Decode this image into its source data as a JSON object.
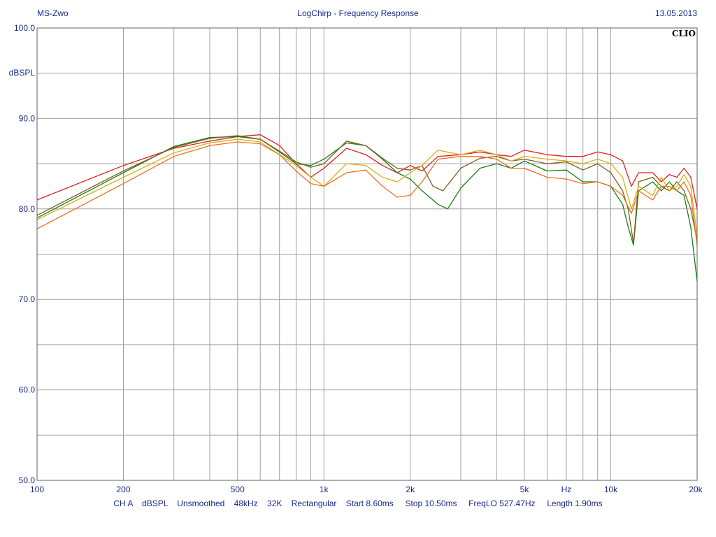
{
  "header": {
    "left": "MS-Zwo",
    "center": "LogChirp - Frequency Response",
    "right": "13.05.2013"
  },
  "brand": "CLIO",
  "footer": "CH A    dBSPL    Unsmoothed    48kHz    32K    Rectangular    Start 8.60ms     Stop 10.50ms     FreqLO 527.47Hz     Length 1.90ms",
  "colors": {
    "background": "#ffffff",
    "grid": "#a0a0a0",
    "text": "#1a2a8a",
    "frame": "#606060"
  },
  "chart_data": {
    "type": "line",
    "xscale": "log",
    "xlim": [
      100,
      20000
    ],
    "ylim": [
      50,
      100
    ],
    "grid": true,
    "ylabel": "dBSPL",
    "xlabel": "Hz",
    "y_ticks": [
      "100.0",
      "90.0",
      "80.0",
      "70.0",
      "60.0",
      "50.0"
    ],
    "y_tick_values": [
      100,
      90,
      80,
      70,
      60,
      50
    ],
    "x_ticks": [
      {
        "value": 100,
        "label": "100"
      },
      {
        "value": 200,
        "label": "200"
      },
      {
        "value": 500,
        "label": "500"
      },
      {
        "value": 1000,
        "label": "1k"
      },
      {
        "value": 2000,
        "label": "2k"
      },
      {
        "value": 5000,
        "label": "5k"
      },
      {
        "value": 10000,
        "label": "10k"
      },
      {
        "value": 20000,
        "label": "20k"
      }
    ],
    "series": [
      {
        "color": "#e02020",
        "points": [
          [
            100,
            81.0
          ],
          [
            200,
            84.8
          ],
          [
            300,
            86.7
          ],
          [
            400,
            87.5
          ],
          [
            500,
            88.0
          ],
          [
            600,
            88.2
          ],
          [
            700,
            87.0
          ],
          [
            800,
            85.0
          ],
          [
            900,
            83.5
          ],
          [
            1000,
            84.5
          ],
          [
            1200,
            86.7
          ],
          [
            1400,
            86.0
          ],
          [
            1600,
            84.8
          ],
          [
            1800,
            84.0
          ],
          [
            2000,
            84.8
          ],
          [
            2200,
            84.2
          ],
          [
            2500,
            85.8
          ],
          [
            3000,
            86.0
          ],
          [
            3500,
            86.3
          ],
          [
            4000,
            86.0
          ],
          [
            4500,
            85.8
          ],
          [
            5000,
            86.5
          ],
          [
            6000,
            86.0
          ],
          [
            7000,
            85.8
          ],
          [
            8000,
            85.8
          ],
          [
            9000,
            86.3
          ],
          [
            10000,
            86.0
          ],
          [
            11000,
            85.3
          ],
          [
            11800,
            82.5
          ],
          [
            12500,
            84.0
          ],
          [
            14000,
            84.0
          ],
          [
            15000,
            83.0
          ],
          [
            16000,
            83.8
          ],
          [
            17000,
            83.5
          ],
          [
            18000,
            84.5
          ],
          [
            19000,
            83.5
          ],
          [
            20000,
            80.0
          ]
        ]
      },
      {
        "color": "#188018",
        "points": [
          [
            100,
            79.0
          ],
          [
            200,
            84.0
          ],
          [
            300,
            86.9
          ],
          [
            400,
            87.9
          ],
          [
            500,
            88.0
          ],
          [
            600,
            87.7
          ],
          [
            700,
            86.3
          ],
          [
            800,
            85.0
          ],
          [
            900,
            84.8
          ],
          [
            1000,
            85.5
          ],
          [
            1200,
            87.3
          ],
          [
            1400,
            87.0
          ],
          [
            1600,
            85.5
          ],
          [
            1800,
            84.0
          ],
          [
            2000,
            83.3
          ],
          [
            2200,
            82.0
          ],
          [
            2500,
            80.5
          ],
          [
            2700,
            80.0
          ],
          [
            3000,
            82.3
          ],
          [
            3500,
            84.5
          ],
          [
            4000,
            85.0
          ],
          [
            4500,
            84.5
          ],
          [
            5000,
            85.3
          ],
          [
            6000,
            84.2
          ],
          [
            7000,
            84.3
          ],
          [
            8000,
            83.0
          ],
          [
            9000,
            83.0
          ],
          [
            10000,
            82.5
          ],
          [
            11000,
            80.5
          ],
          [
            11500,
            78.0
          ],
          [
            12000,
            76.0
          ],
          [
            12500,
            82.0
          ],
          [
            14000,
            83.0
          ],
          [
            15000,
            82.0
          ],
          [
            16000,
            83.0
          ],
          [
            17000,
            82.0
          ],
          [
            18000,
            81.5
          ],
          [
            19000,
            78.0
          ],
          [
            20000,
            72.0
          ]
        ]
      },
      {
        "color": "#786020",
        "points": [
          [
            100,
            79.3
          ],
          [
            200,
            84.2
          ],
          [
            300,
            86.8
          ],
          [
            400,
            87.8
          ],
          [
            500,
            88.1
          ],
          [
            600,
            87.7
          ],
          [
            700,
            86.4
          ],
          [
            800,
            85.2
          ],
          [
            900,
            84.6
          ],
          [
            1000,
            85.0
          ],
          [
            1200,
            87.5
          ],
          [
            1400,
            87.0
          ],
          [
            1600,
            85.6
          ],
          [
            1800,
            84.5
          ],
          [
            2000,
            84.3
          ],
          [
            2200,
            84.8
          ],
          [
            2400,
            82.5
          ],
          [
            2600,
            82.0
          ],
          [
            3000,
            84.5
          ],
          [
            3500,
            85.6
          ],
          [
            4000,
            85.8
          ],
          [
            4500,
            85.3
          ],
          [
            5000,
            85.5
          ],
          [
            6000,
            85.0
          ],
          [
            7000,
            85.2
          ],
          [
            8000,
            84.3
          ],
          [
            9000,
            85.0
          ],
          [
            10000,
            84.0
          ],
          [
            11000,
            82.0
          ],
          [
            11500,
            80.0
          ],
          [
            12000,
            76.2
          ],
          [
            12500,
            83.0
          ],
          [
            14000,
            83.5
          ],
          [
            15000,
            82.5
          ],
          [
            16000,
            82.0
          ],
          [
            17000,
            83.0
          ],
          [
            18000,
            82.0
          ],
          [
            19000,
            80.0
          ],
          [
            20000,
            76.5
          ]
        ]
      },
      {
        "color": "#d8b010",
        "points": [
          [
            100,
            78.8
          ],
          [
            200,
            83.5
          ],
          [
            300,
            86.2
          ],
          [
            400,
            87.3
          ],
          [
            500,
            87.7
          ],
          [
            600,
            87.4
          ],
          [
            700,
            86.0
          ],
          [
            800,
            84.8
          ],
          [
            900,
            83.5
          ],
          [
            1000,
            82.5
          ],
          [
            1200,
            85.0
          ],
          [
            1400,
            84.8
          ],
          [
            1600,
            83.5
          ],
          [
            1800,
            83.0
          ],
          [
            2000,
            84.0
          ],
          [
            2200,
            84.8
          ],
          [
            2500,
            86.5
          ],
          [
            3000,
            86.0
          ],
          [
            3500,
            86.5
          ],
          [
            4000,
            86.0
          ],
          [
            4500,
            85.3
          ],
          [
            5000,
            85.8
          ],
          [
            6000,
            85.5
          ],
          [
            7000,
            85.3
          ],
          [
            8000,
            85.0
          ],
          [
            9000,
            85.5
          ],
          [
            10000,
            85.0
          ],
          [
            11000,
            83.5
          ],
          [
            11800,
            80.0
          ],
          [
            12500,
            82.5
          ],
          [
            14000,
            81.5
          ],
          [
            15000,
            83.5
          ],
          [
            16000,
            82.0
          ],
          [
            17000,
            82.5
          ],
          [
            18000,
            83.8
          ],
          [
            19000,
            82.5
          ],
          [
            20000,
            77.0
          ]
        ]
      },
      {
        "color": "#f07020",
        "points": [
          [
            100,
            77.8
          ],
          [
            200,
            82.8
          ],
          [
            300,
            85.8
          ],
          [
            400,
            87.0
          ],
          [
            500,
            87.4
          ],
          [
            600,
            87.2
          ],
          [
            700,
            86.0
          ],
          [
            800,
            84.2
          ],
          [
            900,
            82.8
          ],
          [
            1000,
            82.5
          ],
          [
            1200,
            84.0
          ],
          [
            1400,
            84.3
          ],
          [
            1600,
            82.5
          ],
          [
            1800,
            81.3
          ],
          [
            2000,
            81.5
          ],
          [
            2200,
            83.0
          ],
          [
            2500,
            85.5
          ],
          [
            3000,
            85.8
          ],
          [
            3500,
            85.8
          ],
          [
            4000,
            85.5
          ],
          [
            4500,
            84.5
          ],
          [
            5000,
            84.5
          ],
          [
            6000,
            83.5
          ],
          [
            7000,
            83.3
          ],
          [
            8000,
            82.8
          ],
          [
            9000,
            83.0
          ],
          [
            10000,
            82.5
          ],
          [
            11000,
            81.5
          ],
          [
            11800,
            79.5
          ],
          [
            12500,
            82.0
          ],
          [
            14000,
            81.0
          ],
          [
            15000,
            82.5
          ],
          [
            16000,
            82.5
          ],
          [
            17000,
            82.0
          ],
          [
            18000,
            83.0
          ],
          [
            19000,
            81.5
          ],
          [
            20000,
            76.0
          ]
        ]
      }
    ]
  }
}
